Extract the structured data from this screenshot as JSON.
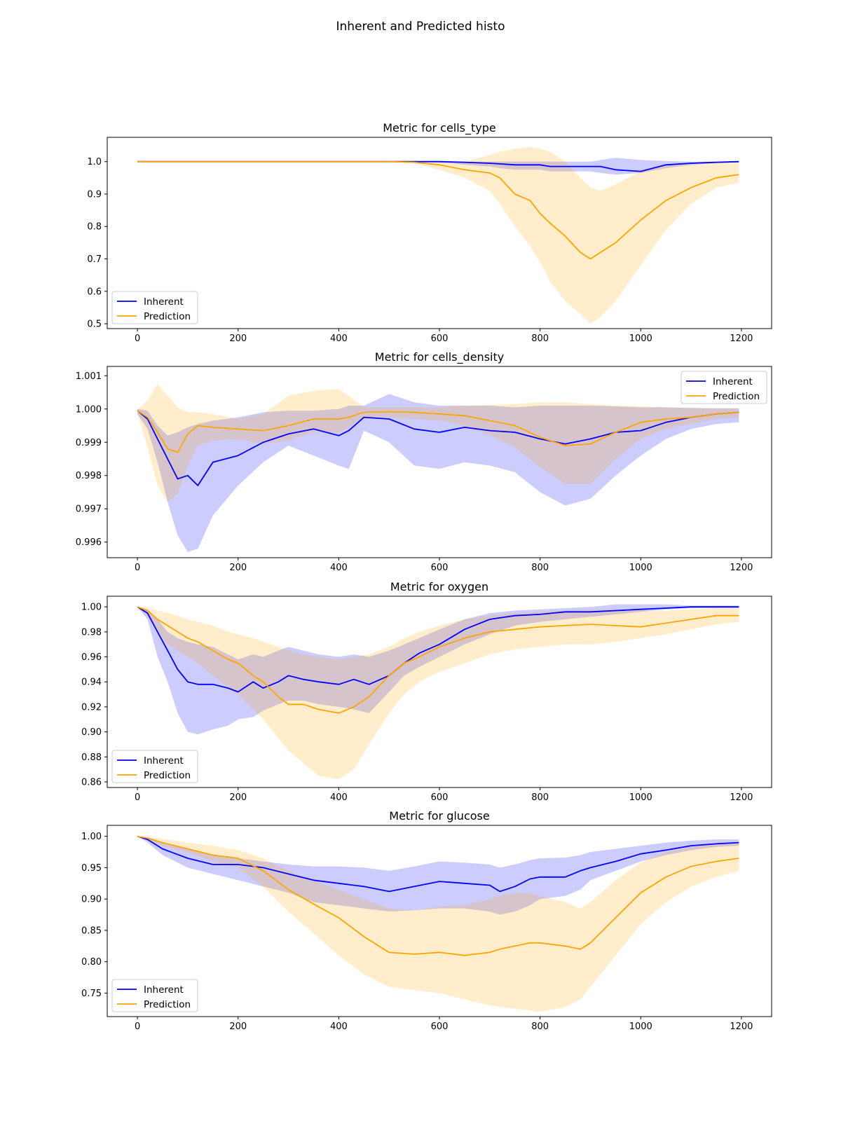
{
  "figure": {
    "title": "Inherent and Predicted histo"
  },
  "colors": {
    "inherent": "#0000ff",
    "prediction": "#ffa500",
    "inherent_band": "#0000ff",
    "prediction_band": "#ffa500"
  },
  "chart_data": [
    {
      "type": "line",
      "title": "Metric for cells_type",
      "xlabel": "",
      "ylabel": "",
      "xlim": [
        -60,
        1260
      ],
      "ylim": [
        0.485,
        1.075
      ],
      "xticks": [
        0,
        200,
        400,
        600,
        800,
        1000,
        1200
      ],
      "yticks": [
        0.5,
        0.6,
        0.7,
        0.8,
        0.9,
        1.0
      ],
      "ytick_labels": [
        "0.5",
        "0.6",
        "0.7",
        "0.8",
        "0.9",
        "1.0"
      ],
      "legend": {
        "position": "lower-left"
      },
      "x": [
        0,
        50,
        100,
        200,
        300,
        400,
        500,
        550,
        600,
        650,
        700,
        720,
        750,
        780,
        800,
        820,
        850,
        880,
        900,
        920,
        950,
        1000,
        1050,
        1100,
        1150,
        1195
      ],
      "series": [
        {
          "name": "Inherent",
          "values": [
            1.0,
            1.0,
            1.0,
            1.0,
            1.0,
            1.0,
            1.0,
            1.0,
            1.0,
            0.998,
            0.995,
            0.993,
            0.99,
            0.99,
            0.99,
            0.985,
            0.985,
            0.985,
            0.985,
            0.985,
            0.975,
            0.97,
            0.99,
            0.995,
            0.998,
            1.0
          ],
          "lower": [
            1.0,
            1.0,
            1.0,
            1.0,
            1.0,
            1.0,
            1.0,
            1.0,
            0.998,
            0.99,
            0.985,
            0.98,
            0.975,
            0.975,
            0.975,
            0.97,
            0.97,
            0.97,
            0.97,
            0.965,
            0.96,
            0.965,
            0.98,
            0.99,
            0.995,
            0.998
          ],
          "upper": [
            1.0,
            1.0,
            1.0,
            1.0,
            1.0,
            1.0,
            1.0,
            1.0,
            1.0,
            1.0,
            1.0,
            1.0,
            1.0,
            1.0,
            1.0,
            1.0,
            1.0,
            1.0,
            1.0,
            1.005,
            1.012,
            1.005,
            1.002,
            1.0,
            1.0,
            1.0
          ]
        },
        {
          "name": "Prediction",
          "values": [
            1.0,
            1.0,
            1.0,
            1.0,
            1.0,
            1.0,
            1.0,
            0.998,
            0.99,
            0.975,
            0.965,
            0.95,
            0.9,
            0.88,
            0.84,
            0.81,
            0.77,
            0.72,
            0.7,
            0.72,
            0.75,
            0.82,
            0.88,
            0.92,
            0.95,
            0.96
          ],
          "lower": [
            1.0,
            1.0,
            1.0,
            1.0,
            1.0,
            1.0,
            1.0,
            0.995,
            0.975,
            0.95,
            0.91,
            0.87,
            0.8,
            0.74,
            0.69,
            0.63,
            0.57,
            0.53,
            0.5,
            0.52,
            0.57,
            0.68,
            0.79,
            0.87,
            0.92,
            0.935
          ],
          "upper": [
            1.0,
            1.0,
            1.0,
            1.0,
            1.0,
            1.0,
            1.0,
            1.0,
            1.0,
            1.0,
            1.02,
            1.03,
            1.04,
            1.045,
            1.04,
            1.03,
            1.0,
            0.95,
            0.92,
            0.91,
            0.93,
            0.97,
            0.99,
            0.995,
            0.998,
            1.0
          ]
        }
      ]
    },
    {
      "type": "line",
      "title": "Metric for cells_density",
      "xlabel": "",
      "ylabel": "",
      "xlim": [
        -60,
        1260
      ],
      "ylim": [
        0.99553,
        1.00128
      ],
      "xticks": [
        0,
        200,
        400,
        600,
        800,
        1000,
        1200
      ],
      "yticks": [
        0.996,
        0.997,
        0.998,
        0.999,
        1.0,
        1.001
      ],
      "ytick_labels": [
        "0.996",
        "0.997",
        "0.998",
        "0.999",
        "1.000",
        "1.001"
      ],
      "legend": {
        "position": "top-right"
      },
      "x": [
        0,
        20,
        40,
        60,
        80,
        100,
        120,
        150,
        200,
        250,
        300,
        350,
        400,
        420,
        450,
        500,
        550,
        600,
        650,
        700,
        750,
        800,
        850,
        900,
        950,
        1000,
        1050,
        1100,
        1150,
        1195
      ],
      "series": [
        {
          "name": "Inherent",
          "values": [
            0.99995,
            0.9997,
            0.9991,
            0.9985,
            0.9979,
            0.998,
            0.9977,
            0.9984,
            0.9986,
            0.999,
            0.99925,
            0.9994,
            0.9992,
            0.99935,
            0.99975,
            0.9997,
            0.9994,
            0.9993,
            0.99945,
            0.99935,
            0.9993,
            0.9991,
            0.99895,
            0.9991,
            0.9993,
            0.99935,
            0.9996,
            0.99975,
            0.99985,
            0.9999
          ],
          "lower": [
            0.99985,
            0.9994,
            0.9984,
            0.9972,
            0.9962,
            0.9957,
            0.9958,
            0.9968,
            0.9977,
            0.9984,
            0.9989,
            0.9986,
            0.9983,
            0.9982,
            0.99935,
            0.999,
            0.9983,
            0.9982,
            0.9984,
            0.9983,
            0.9981,
            0.9975,
            0.9971,
            0.9973,
            0.998,
            0.9986,
            0.9991,
            0.9994,
            0.99955,
            0.9996
          ],
          "upper": [
            1.0,
            0.99995,
            0.9995,
            0.9992,
            0.9993,
            0.99945,
            0.99955,
            0.99965,
            0.99975,
            0.9999,
            0.99995,
            0.99995,
            1.0,
            1.0001,
            1.0001,
            1.00045,
            1.0002,
            1.0001,
            1.0001,
            1.0001,
            1.00005,
            1.0001,
            1.0001,
            1.0001,
            1.00008,
            1.00005,
            1.00005,
            1.00003,
            1.00002,
            1.00002
          ]
        },
        {
          "name": "Prediction",
          "values": [
            0.99995,
            0.99975,
            0.9993,
            0.9988,
            0.9987,
            0.99925,
            0.9995,
            0.99945,
            0.9994,
            0.99935,
            0.9995,
            0.9997,
            0.9997,
            0.99975,
            0.9999,
            0.99992,
            0.9999,
            0.99985,
            0.9998,
            0.99965,
            0.9995,
            0.99915,
            0.9989,
            0.99895,
            0.9993,
            0.9996,
            0.9997,
            0.99975,
            0.99985,
            0.9999
          ],
          "lower": [
            0.99985,
            0.99885,
            0.9977,
            0.9972,
            0.99745,
            0.9983,
            0.9989,
            0.99905,
            0.9991,
            0.99895,
            0.99905,
            0.9993,
            0.9993,
            0.99945,
            0.99975,
            0.99975,
            0.9997,
            0.99965,
            0.9995,
            0.9992,
            0.99885,
            0.99825,
            0.99775,
            0.99775,
            0.9985,
            0.9991,
            0.9994,
            0.99955,
            0.9997,
            0.99975
          ],
          "upper": [
            1.0,
            1.00025,
            1.00075,
            1.0004,
            1.00005,
            0.9999,
            0.9999,
            0.99985,
            0.9997,
            0.99985,
            1.0004,
            1.00055,
            1.0006,
            1.0004,
            1.00005,
            1.00005,
            1.00005,
            1.00005,
            1.0001,
            1.00012,
            1.00015,
            1.0002,
            1.0002,
            1.00015,
            1.0001,
            1.00008,
            1.00005,
            1.00003,
            1.00002,
            1.00002
          ]
        }
      ]
    },
    {
      "type": "line",
      "title": "Metric for oxygen",
      "xlabel": "",
      "ylabel": "",
      "xlim": [
        -60,
        1260
      ],
      "ylim": [
        0.8555,
        1.0085
      ],
      "xticks": [
        0,
        200,
        400,
        600,
        800,
        1000,
        1200
      ],
      "yticks": [
        0.86,
        0.88,
        0.9,
        0.92,
        0.94,
        0.96,
        0.98,
        1.0
      ],
      "ytick_labels": [
        "0.86",
        "0.88",
        "0.90",
        "0.92",
        "0.94",
        "0.96",
        "0.98",
        "1.00"
      ],
      "legend": {
        "position": "lower-left"
      },
      "x": [
        0,
        20,
        40,
        60,
        80,
        100,
        120,
        150,
        180,
        200,
        230,
        250,
        280,
        300,
        330,
        360,
        400,
        430,
        460,
        500,
        530,
        560,
        600,
        650,
        700,
        750,
        800,
        850,
        900,
        950,
        1000,
        1050,
        1100,
        1150,
        1195
      ],
      "series": [
        {
          "name": "Inherent",
          "values": [
            1.0,
            0.995,
            0.98,
            0.965,
            0.95,
            0.94,
            0.938,
            0.938,
            0.935,
            0.932,
            0.94,
            0.935,
            0.94,
            0.945,
            0.942,
            0.94,
            0.938,
            0.942,
            0.938,
            0.945,
            0.955,
            0.963,
            0.97,
            0.982,
            0.99,
            0.993,
            0.994,
            0.996,
            0.996,
            0.997,
            0.998,
            0.999,
            1.0,
            1.0,
            1.0
          ],
          "lower": [
            1.0,
            0.99,
            0.96,
            0.94,
            0.915,
            0.9,
            0.898,
            0.902,
            0.905,
            0.91,
            0.912,
            0.917,
            0.922,
            0.925,
            0.925,
            0.922,
            0.92,
            0.918,
            0.915,
            0.932,
            0.945,
            0.952,
            0.96,
            0.97,
            0.978,
            0.985,
            0.988,
            0.99,
            0.992,
            0.994,
            0.996,
            0.998,
            0.999,
            0.999,
            0.999
          ],
          "upper": [
            1.0,
            0.998,
            0.99,
            0.98,
            0.975,
            0.972,
            0.97,
            0.968,
            0.962,
            0.958,
            0.962,
            0.96,
            0.965,
            0.968,
            0.965,
            0.962,
            0.96,
            0.962,
            0.96,
            0.965,
            0.97,
            0.975,
            0.982,
            0.99,
            0.995,
            0.997,
            0.998,
            0.999,
            1.0,
            1.002,
            1.002,
            1.002,
            1.001,
            1.001,
            1.001
          ]
        },
        {
          "name": "Prediction",
          "values": [
            1.0,
            0.997,
            0.99,
            0.985,
            0.98,
            0.975,
            0.972,
            0.965,
            0.958,
            0.955,
            0.945,
            0.94,
            0.928,
            0.922,
            0.922,
            0.918,
            0.915,
            0.92,
            0.928,
            0.945,
            0.955,
            0.96,
            0.968,
            0.975,
            0.98,
            0.982,
            0.984,
            0.985,
            0.986,
            0.985,
            0.984,
            0.987,
            0.99,
            0.993,
            0.993
          ],
          "lower": [
            1.0,
            0.993,
            0.98,
            0.97,
            0.965,
            0.96,
            0.955,
            0.945,
            0.935,
            0.93,
            0.918,
            0.91,
            0.895,
            0.885,
            0.875,
            0.865,
            0.862,
            0.87,
            0.89,
            0.915,
            0.93,
            0.94,
            0.948,
            0.955,
            0.962,
            0.966,
            0.968,
            0.97,
            0.97,
            0.972,
            0.975,
            0.978,
            0.982,
            0.986,
            0.988
          ],
          "upper": [
            1.0,
            1.0,
            0.997,
            0.995,
            0.993,
            0.99,
            0.988,
            0.985,
            0.98,
            0.978,
            0.975,
            0.972,
            0.968,
            0.965,
            0.962,
            0.96,
            0.958,
            0.96,
            0.962,
            0.968,
            0.975,
            0.98,
            0.985,
            0.99,
            0.993,
            0.995,
            0.996,
            0.997,
            0.998,
            0.998,
            0.997,
            0.997,
            0.998,
            0.999,
            0.999
          ]
        }
      ]
    },
    {
      "type": "line",
      "title": "Metric for glucose",
      "xlabel": "",
      "ylabel": "",
      "xlim": [
        -60,
        1260
      ],
      "ylim": [
        0.7125,
        1.0175
      ],
      "xticks": [
        0,
        200,
        400,
        600,
        800,
        1000,
        1200
      ],
      "yticks": [
        0.75,
        0.8,
        0.85,
        0.9,
        0.95,
        1.0
      ],
      "ytick_labels": [
        "0.75",
        "0.80",
        "0.85",
        "0.90",
        "0.95",
        "1.00"
      ],
      "legend": {
        "position": "lower-left"
      },
      "x": [
        0,
        20,
        50,
        100,
        150,
        200,
        250,
        300,
        350,
        400,
        450,
        500,
        550,
        600,
        650,
        700,
        720,
        750,
        780,
        800,
        850,
        880,
        900,
        950,
        1000,
        1050,
        1100,
        1150,
        1195
      ],
      "series": [
        {
          "name": "Inherent",
          "values": [
            1.0,
            0.995,
            0.98,
            0.965,
            0.955,
            0.955,
            0.95,
            0.94,
            0.93,
            0.925,
            0.92,
            0.912,
            0.92,
            0.928,
            0.925,
            0.922,
            0.912,
            0.92,
            0.932,
            0.935,
            0.935,
            0.945,
            0.95,
            0.96,
            0.972,
            0.978,
            0.985,
            0.988,
            0.99
          ],
          "lower": [
            1.0,
            0.99,
            0.97,
            0.95,
            0.94,
            0.93,
            0.92,
            0.91,
            0.895,
            0.89,
            0.885,
            0.88,
            0.882,
            0.885,
            0.885,
            0.88,
            0.875,
            0.88,
            0.89,
            0.9,
            0.905,
            0.915,
            0.93,
            0.945,
            0.96,
            0.97,
            0.978,
            0.983,
            0.985
          ],
          "upper": [
            1.0,
            0.998,
            0.99,
            0.98,
            0.97,
            0.965,
            0.96,
            0.955,
            0.952,
            0.952,
            0.95,
            0.945,
            0.952,
            0.96,
            0.958,
            0.955,
            0.95,
            0.955,
            0.962,
            0.965,
            0.966,
            0.97,
            0.975,
            0.98,
            0.985,
            0.99,
            0.993,
            0.995,
            0.995
          ]
        },
        {
          "name": "Prediction",
          "values": [
            1.0,
            0.997,
            0.99,
            0.98,
            0.97,
            0.965,
            0.945,
            0.915,
            0.892,
            0.87,
            0.84,
            0.815,
            0.812,
            0.815,
            0.81,
            0.815,
            0.82,
            0.825,
            0.83,
            0.83,
            0.825,
            0.82,
            0.83,
            0.87,
            0.91,
            0.935,
            0.952,
            0.96,
            0.965
          ],
          "lower": [
            1.0,
            0.995,
            0.985,
            0.975,
            0.96,
            0.95,
            0.92,
            0.88,
            0.845,
            0.81,
            0.78,
            0.76,
            0.755,
            0.75,
            0.74,
            0.73,
            0.728,
            0.725,
            0.722,
            0.72,
            0.728,
            0.74,
            0.76,
            0.81,
            0.86,
            0.895,
            0.92,
            0.935,
            0.945
          ],
          "upper": [
            1.0,
            0.999,
            0.996,
            0.99,
            0.985,
            0.978,
            0.965,
            0.945,
            0.93,
            0.915,
            0.9,
            0.885,
            0.882,
            0.888,
            0.89,
            0.9,
            0.905,
            0.91,
            0.91,
            0.905,
            0.895,
            0.885,
            0.895,
            0.93,
            0.958,
            0.975,
            0.983,
            0.988,
            0.99
          ]
        }
      ]
    }
  ]
}
